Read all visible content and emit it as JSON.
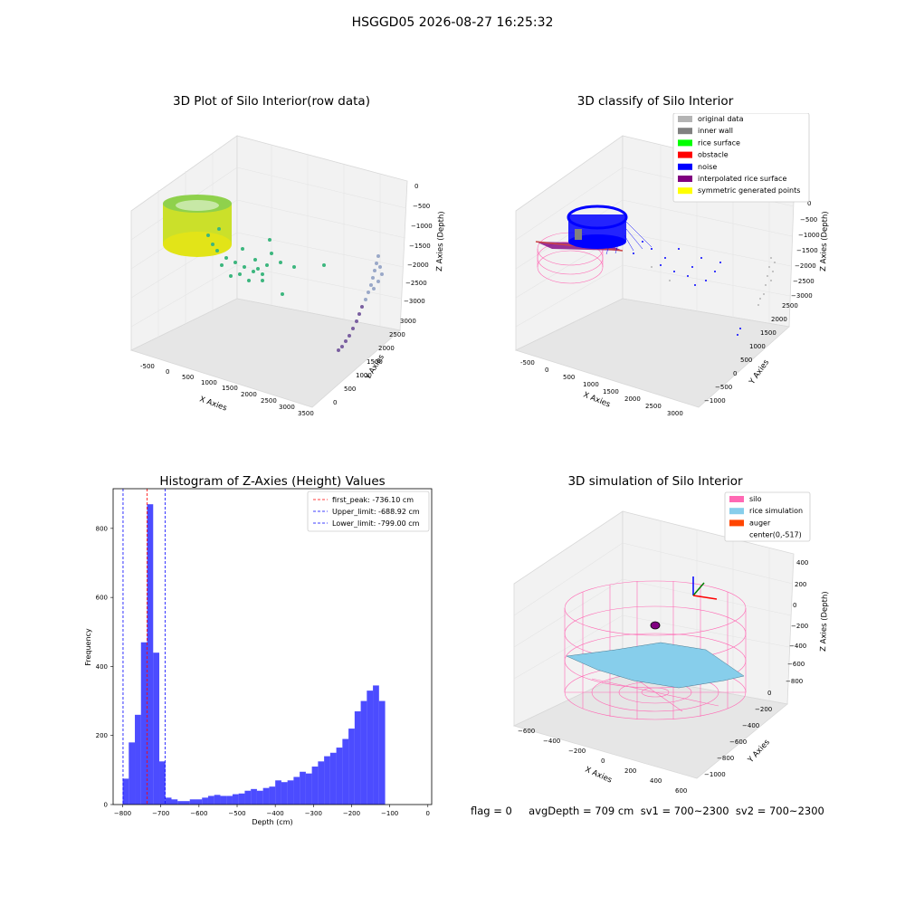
{
  "suptitle": "HSGGD05 2026-08-27 16:25:32",
  "panels": {
    "top_left": {
      "title": "3D Plot of Silo Interior(row data)",
      "xlabel": "X Axies",
      "ylabel": "Y Axies",
      "zlabel": "Z Axies (Depth)",
      "xticks": [
        "-500",
        "0",
        "500",
        "1000",
        "1500",
        "2000",
        "2500",
        "3000",
        "3500"
      ],
      "yticks": [
        "0",
        "500",
        "1000",
        "1500",
        "2000",
        "2500",
        "3000"
      ],
      "zticks": [
        "0",
        "−500",
        "−1000",
        "−1500",
        "−2000",
        "−2500",
        "−3000"
      ]
    },
    "top_right": {
      "title": "3D classify of Silo Interior",
      "xlabel": "X Axies",
      "ylabel": "Y Axies",
      "zlabel": "Z Axies (Depth)",
      "xticks": [
        "-500",
        "0",
        "500",
        "1000",
        "1500",
        "2000",
        "2500",
        "3000"
      ],
      "yticks": [
        "−1000",
        "−500",
        "0",
        "500",
        "1000",
        "1500",
        "2000",
        "2500"
      ],
      "zticks": [
        "0",
        "−500",
        "−1000",
        "−1500",
        "−2000",
        "−2500",
        "−3000"
      ],
      "legend": [
        {
          "label": "original data",
          "color": "#b4b4b4"
        },
        {
          "label": "inner wall",
          "color": "#808080"
        },
        {
          "label": "rice surface",
          "color": "#00ff00"
        },
        {
          "label": "obstacle",
          "color": "#ff0000"
        },
        {
          "label": "noise",
          "color": "#0000ff"
        },
        {
          "label": "interpolated rice surface",
          "color": "#800080"
        },
        {
          "label": "symmetric generated points",
          "color": "#ffff00"
        }
      ]
    },
    "bottom_right": {
      "title": "3D simulation of Silo Interior",
      "xlabel": "X Axies",
      "ylabel": "Y Axies",
      "zlabel": "Z Axies (Depth)",
      "xticks": [
        "−600",
        "−400",
        "−200",
        "0",
        "200",
        "400",
        "600"
      ],
      "yticks": [
        "−1000",
        "−800",
        "−600",
        "−400",
        "−200",
        "0"
      ],
      "zticks": [
        "400",
        "200",
        "0",
        "−200",
        "−400",
        "−600",
        "−800"
      ],
      "legend": [
        {
          "label": "silo",
          "color": "#ff69b4"
        },
        {
          "label": "rice simulation",
          "color": "#87ceeb"
        },
        {
          "label": "auger",
          "color": "#ff4500"
        },
        {
          "label": "center(0,-517)",
          "color": ""
        }
      ]
    }
  },
  "chart_data": {
    "type": "bar",
    "title": "Histogram of Z-Axies (Height) Values",
    "xlabel": "Depth (cm)",
    "ylabel": "Frequency",
    "xlim": [
      -825,
      10
    ],
    "ylim": [
      0,
      915
    ],
    "xticks": [
      "−800",
      "−700",
      "−600",
      "−500",
      "−400",
      "−300",
      "−200",
      "−100",
      "0"
    ],
    "yticks": [
      "0",
      "200",
      "400",
      "600",
      "800"
    ],
    "bin_start": -800,
    "bin_width": 16,
    "values": [
      75,
      180,
      260,
      470,
      870,
      440,
      125,
      20,
      15,
      10,
      10,
      15,
      15,
      20,
      25,
      28,
      25,
      25,
      30,
      32,
      40,
      45,
      40,
      48,
      52,
      70,
      65,
      70,
      80,
      95,
      90,
      110,
      125,
      140,
      150,
      165,
      190,
      220,
      270,
      300,
      330,
      345,
      300
    ],
    "lines": [
      {
        "label": "first_peak: -736.10 cm",
        "value": -736.1,
        "color": "#ff0000"
      },
      {
        "label": "Upper_limit: -688.92 cm",
        "value": -688.92,
        "color": "#0000ff"
      },
      {
        "label": "Lower_limit: -799.00 cm",
        "value": -799.0,
        "color": "#0000ff"
      }
    ],
    "bar_color": "#0000ff"
  },
  "footer": "flag = 0     avgDepth = 709 cm  sv1 = 700~2300  sv2 = 700~2300"
}
